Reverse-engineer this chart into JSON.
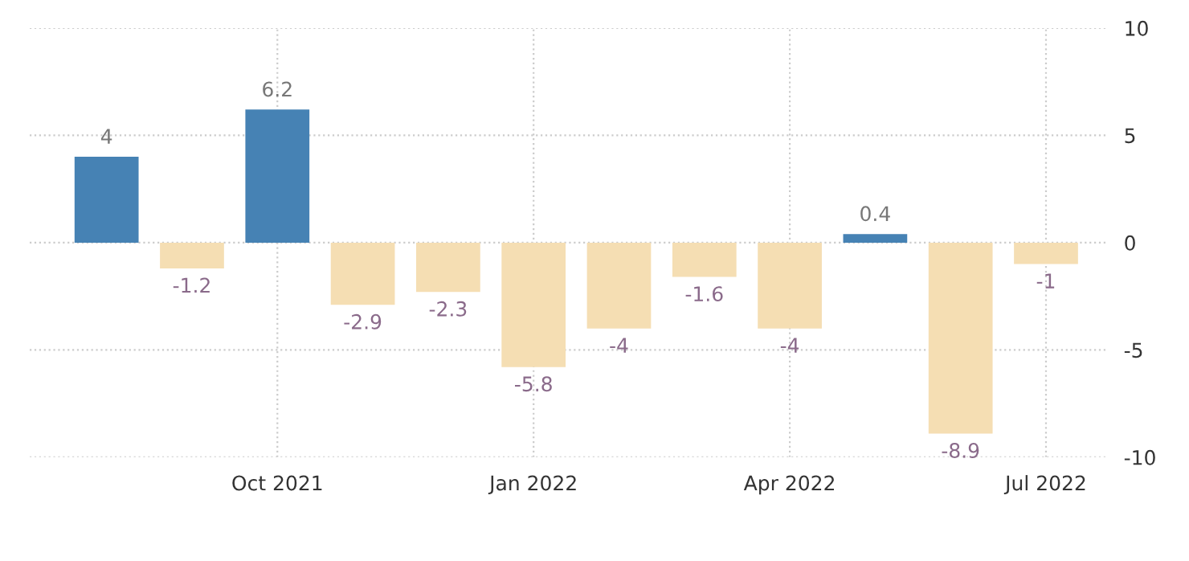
{
  "chart_data": {
    "type": "bar",
    "categories": [
      null,
      null,
      "Oct 2021",
      null,
      null,
      "Jan 2022",
      null,
      null,
      "Apr 2022",
      null,
      null,
      "Jul 2022"
    ],
    "values": [
      4,
      -1.2,
      6.2,
      -2.9,
      -2.3,
      -5.8,
      -4,
      -1.6,
      -4,
      0.4,
      -8.9,
      -1
    ],
    "colors": [
      "#4682b4",
      "#f5deb3",
      "#4682b4",
      "#f5deb3",
      "#f5deb3",
      "#f5deb3",
      "#f5deb3",
      "#f5deb3",
      "#f5deb3",
      "#4682b4",
      "#f5deb3",
      "#f5deb3"
    ],
    "ylim": [
      -10,
      10
    ],
    "yticks": [
      -10,
      -5,
      0,
      5,
      10
    ],
    "grid": true,
    "data_labels": true
  }
}
